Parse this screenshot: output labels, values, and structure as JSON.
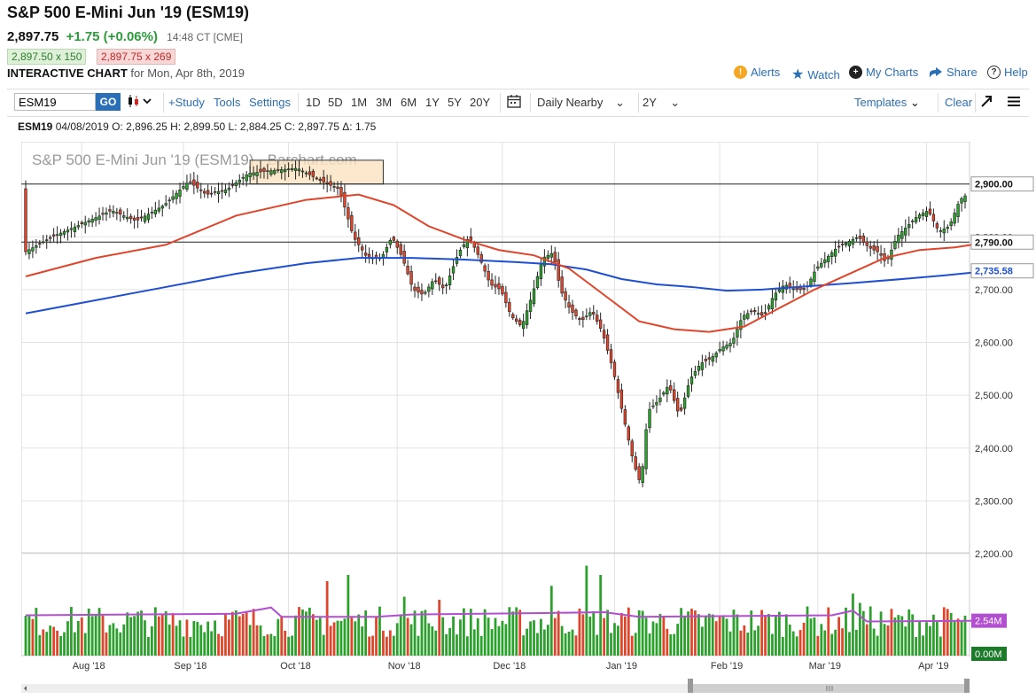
{
  "header": {
    "title": "S&P 500 E-Mini Jun '19 (ESM19)",
    "last": "2,897.75",
    "change": "+1.75 (+0.06%)",
    "time": "14:48 CT [CME]",
    "bid": "2,897.50 x 150",
    "ask": "2,897.75 x 269",
    "chart_label": "INTERACTIVE CHART",
    "chart_date": "for Mon, Apr 8th, 2019"
  },
  "top_actions": [
    {
      "label": "Alerts",
      "icon": "alert-icon"
    },
    {
      "label": "Watch",
      "icon": "star-icon"
    },
    {
      "label": "My Charts",
      "icon": "plus-circle-icon"
    },
    {
      "label": "Share",
      "icon": "share-icon"
    },
    {
      "label": "Help",
      "icon": "help-icon"
    }
  ],
  "toolbar": {
    "symbol_value": "ESM19",
    "go_label": "GO",
    "study_label": "+Study",
    "tools_label": "Tools",
    "settings_label": "Settings",
    "periods": [
      "1D",
      "5D",
      "1M",
      "3M",
      "6M",
      "1Y",
      "5Y",
      "20Y"
    ],
    "interval": "Daily Nearby",
    "range": "2Y",
    "templates_label": "Templates",
    "clear_label": "Clear"
  },
  "ohlc_line": {
    "symbol": "ESM19",
    "text": "04/08/2019 O: 2,896.25 H: 2,899.50 L: 2,884.25 C: 2,897.75 Δ: 1.75"
  },
  "colors": {
    "up": "#2ca02c",
    "down": "#e0452b",
    "ma50": "#e0452b",
    "ma200": "#1f4fd1",
    "volume_avg": "#b24fd1",
    "link": "#2a6fb8"
  },
  "chart_data": {
    "type": "candlestick",
    "watermark": "S&P 500 E-Mini Jun '19 (ESM19) - Barchart.com",
    "x_labels": [
      "Aug '18",
      "Sep '18",
      "Oct '18",
      "Nov '18",
      "Dec '18",
      "Jan '19",
      "Feb '19",
      "Mar '19",
      "Apr '19"
    ],
    "x_label_days": [
      18,
      47,
      77,
      108,
      138,
      170,
      200,
      228,
      259
    ],
    "y_ticks": [
      "2,200.00",
      "2,300.00",
      "2,400.00",
      "2,500.00",
      "2,600.00",
      "2,700.00",
      "2,800.00"
    ],
    "y_tick_values": [
      2200,
      2300,
      2400,
      2500,
      2600,
      2700,
      2800
    ],
    "ylim": [
      2200,
      2980
    ],
    "xlim": [
      0,
      268
    ],
    "horizontal_lines": [
      {
        "label": "2,900.00",
        "value": 2900
      },
      {
        "label": "2,790.00",
        "value": 2790
      }
    ],
    "price_tags": [
      {
        "label": "2,900.00",
        "value": 2900,
        "color": "#ffffff",
        "text_color": "#111111"
      },
      {
        "label": "2,790.00",
        "value": 2790,
        "color": "#ffffff",
        "text_color": "#111111"
      },
      {
        "label": "2,735.58",
        "value": 2735.58,
        "color": "#ffffff",
        "text_color": "#1f4fd1"
      }
    ],
    "highlight_box": {
      "x_start_day": 64,
      "x_end_day": 102,
      "y_low": 2900,
      "y_high": 2945
    },
    "price_path": [
      [
        0,
        2770
      ],
      [
        8,
        2800
      ],
      [
        15,
        2820
      ],
      [
        25,
        2850
      ],
      [
        32,
        2830
      ],
      [
        40,
        2860
      ],
      [
        47,
        2905
      ],
      [
        52,
        2880
      ],
      [
        58,
        2890
      ],
      [
        64,
        2920
      ],
      [
        70,
        2925
      ],
      [
        78,
        2930
      ],
      [
        85,
        2905
      ],
      [
        90,
        2890
      ],
      [
        94,
        2800
      ],
      [
        98,
        2760
      ],
      [
        102,
        2760
      ],
      [
        105,
        2800
      ],
      [
        108,
        2760
      ],
      [
        111,
        2700
      ],
      [
        114,
        2690
      ],
      [
        117,
        2720
      ],
      [
        120,
        2700
      ],
      [
        124,
        2770
      ],
      [
        127,
        2800
      ],
      [
        130,
        2760
      ],
      [
        133,
        2710
      ],
      [
        136,
        2700
      ],
      [
        139,
        2650
      ],
      [
        142,
        2630
      ],
      [
        145,
        2690
      ],
      [
        148,
        2760
      ],
      [
        151,
        2770
      ],
      [
        153,
        2700
      ],
      [
        156,
        2660
      ],
      [
        159,
        2640
      ],
      [
        162,
        2660
      ],
      [
        165,
        2620
      ],
      [
        168,
        2550
      ],
      [
        171,
        2460
      ],
      [
        174,
        2370
      ],
      [
        176,
        2330
      ],
      [
        178,
        2470
      ],
      [
        181,
        2490
      ],
      [
        184,
        2520
      ],
      [
        187,
        2460
      ],
      [
        190,
        2530
      ],
      [
        193,
        2560
      ],
      [
        196,
        2570
      ],
      [
        199,
        2590
      ],
      [
        202,
        2600
      ],
      [
        205,
        2650
      ],
      [
        208,
        2660
      ],
      [
        211,
        2650
      ],
      [
        214,
        2690
      ],
      [
        217,
        2710
      ],
      [
        220,
        2700
      ],
      [
        223,
        2700
      ],
      [
        226,
        2740
      ],
      [
        229,
        2760
      ],
      [
        232,
        2780
      ],
      [
        235,
        2790
      ],
      [
        238,
        2800
      ],
      [
        241,
        2780
      ],
      [
        244,
        2770
      ],
      [
        246,
        2750
      ],
      [
        249,
        2800
      ],
      [
        252,
        2820
      ],
      [
        255,
        2840
      ],
      [
        258,
        2850
      ],
      [
        261,
        2810
      ],
      [
        264,
        2820
      ],
      [
        267,
        2870
      ],
      [
        270,
        2885
      ],
      [
        273,
        2895
      ],
      [
        275,
        2898
      ]
    ],
    "ma50_path": [
      [
        0,
        2725
      ],
      [
        20,
        2760
      ],
      [
        40,
        2785
      ],
      [
        60,
        2840
      ],
      [
        80,
        2870
      ],
      [
        95,
        2880
      ],
      [
        105,
        2860
      ],
      [
        115,
        2820
      ],
      [
        125,
        2795
      ],
      [
        135,
        2775
      ],
      [
        145,
        2765
      ],
      [
        155,
        2740
      ],
      [
        165,
        2690
      ],
      [
        175,
        2640
      ],
      [
        185,
        2625
      ],
      [
        195,
        2620
      ],
      [
        205,
        2630
      ],
      [
        215,
        2665
      ],
      [
        225,
        2700
      ],
      [
        235,
        2730
      ],
      [
        245,
        2760
      ],
      [
        255,
        2775
      ],
      [
        265,
        2780
      ],
      [
        275,
        2790
      ]
    ],
    "ma200_path": [
      [
        0,
        2655
      ],
      [
        20,
        2680
      ],
      [
        40,
        2705
      ],
      [
        60,
        2730
      ],
      [
        80,
        2750
      ],
      [
        95,
        2760
      ],
      [
        110,
        2760
      ],
      [
        125,
        2757
      ],
      [
        140,
        2752
      ],
      [
        150,
        2748
      ],
      [
        160,
        2738
      ],
      [
        170,
        2720
      ],
      [
        180,
        2710
      ],
      [
        190,
        2705
      ],
      [
        200,
        2698
      ],
      [
        210,
        2700
      ],
      [
        220,
        2705
      ],
      [
        235,
        2712
      ],
      [
        250,
        2720
      ],
      [
        262,
        2727
      ],
      [
        275,
        2735.58
      ]
    ],
    "volume": {
      "avg_label": "2.54M",
      "min_label": "0.00M",
      "max_value": 6.0,
      "avg_path": [
        [
          0,
          2.6
        ],
        [
          60,
          2.7
        ],
        [
          70,
          3.1
        ],
        [
          73,
          2.5
        ],
        [
          100,
          2.5
        ],
        [
          110,
          2.65
        ],
        [
          150,
          2.75
        ],
        [
          165,
          2.8
        ],
        [
          175,
          2.5
        ],
        [
          230,
          2.6
        ],
        [
          236,
          2.9
        ],
        [
          240,
          2.2
        ],
        [
          275,
          2.25
        ]
      ],
      "bars_up_down_pattern": "uuduuduudduuuuuuduuuuudduuuuuuuuuuuuuudduuduuuduuuuuuuudddddudddudduuduuudduuuduuuduuuddduuuuduuuuddduddduuuuduuuuuuuuduuuuuuuuuuuuuuuuuuuuuuduuuuuuuuudduuuuddduuuuuduuuudddduuuuuuuudduuuuuudduuuuudduuuuudduuuudduuuuuuuuuddu",
      "spikes": [
        [
          86,
          4.8
        ],
        [
          92,
          5.2
        ],
        [
          108,
          3.8
        ],
        [
          118,
          3.6
        ],
        [
          150,
          4.5
        ],
        [
          160,
          5.8
        ],
        [
          164,
          5.2
        ],
        [
          236,
          4.0
        ],
        [
          238,
          3.4
        ]
      ]
    }
  },
  "scrollbar": {
    "handle_icon": "scroll-grip-icon"
  }
}
